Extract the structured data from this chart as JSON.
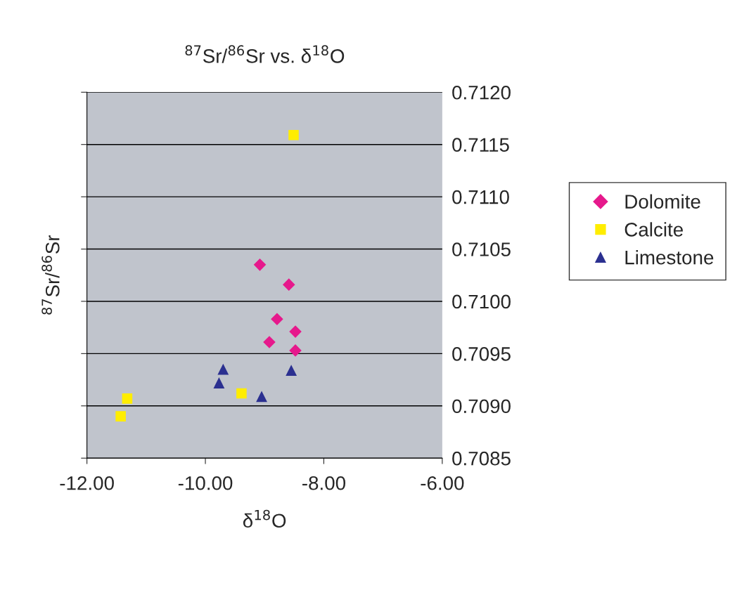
{
  "chart_data": {
    "type": "scatter",
    "title": "$^{87}$Sr/$^{86}$Sr vs. δ$^{18}$O",
    "xlabel": "δ$^{18}$O",
    "ylabel": "$^{87}$Sr/$^{86}$Sr",
    "series": [
      {
        "name": "Dolomite",
        "color": "#e6198c",
        "marker": "diamond",
        "x": [
          -9.08,
          -8.59,
          -8.79,
          -8.48,
          -8.92,
          -8.48
        ],
        "values": [
          0.71035,
          0.71016,
          0.70983,
          0.70971,
          0.70961,
          0.70953
        ]
      },
      {
        "name": "Calcite",
        "color": "#ffed00",
        "marker": "square",
        "x": [
          -8.51,
          -11.32,
          -11.43,
          -9.39
        ],
        "values": [
          0.71159,
          0.70907,
          0.7089,
          0.70912
        ]
      },
      {
        "name": "Limestone",
        "color": "#2b3090",
        "marker": "triangle",
        "x": [
          -9.7,
          -9.77,
          -9.05,
          -8.55
        ],
        "values": [
          0.70935,
          0.70922,
          0.70909,
          0.70934
        ]
      }
    ],
    "xlim": [
      -12,
      -6
    ],
    "xticks": [
      {
        "value": -12,
        "label": "-12.00"
      },
      {
        "value": -10,
        "label": "-10.00"
      },
      {
        "value": -8,
        "label": "-8.00"
      },
      {
        "value": -6,
        "label": "-6.00"
      }
    ],
    "ylim": [
      0.7085,
      0.712
    ],
    "yticks": [
      {
        "value": 0.7085,
        "label": "0.7085"
      },
      {
        "value": 0.709,
        "label": "0.7090"
      },
      {
        "value": 0.7095,
        "label": "0.7095"
      },
      {
        "value": 0.71,
        "label": "0.7100"
      },
      {
        "value": 0.7105,
        "label": "0.7105"
      },
      {
        "value": 0.711,
        "label": "0.7110"
      },
      {
        "value": 0.7115,
        "label": "0.7115"
      },
      {
        "value": 0.712,
        "label": "0.7120"
      }
    ],
    "grid": "y",
    "legend": "right"
  }
}
